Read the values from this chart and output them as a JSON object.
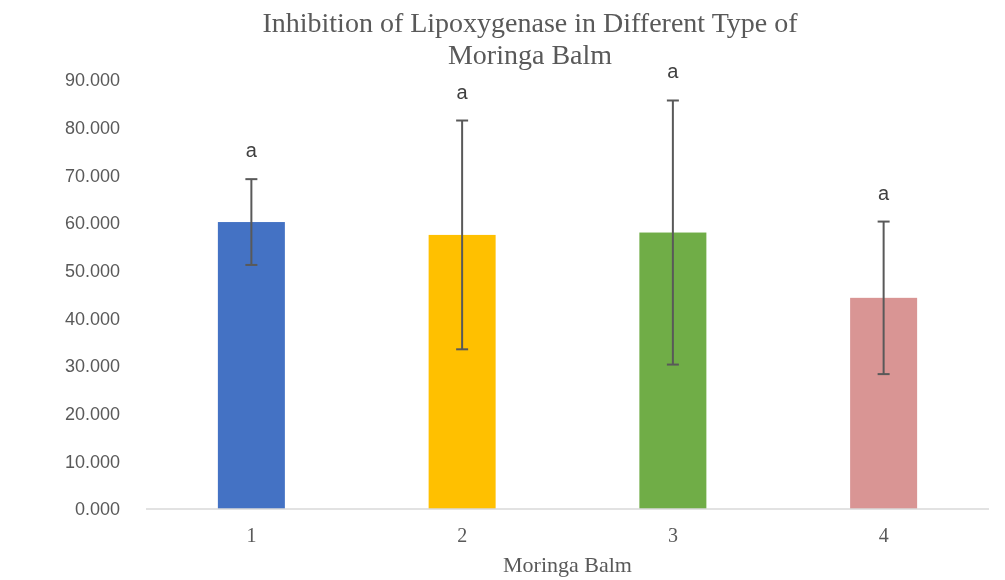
{
  "chart_data": {
    "type": "bar",
    "title": "Inhibition of Lipoxygenase in Different Type of Moringa Balm",
    "xlabel": "Moringa Balm",
    "categories": [
      "1",
      "2",
      "3",
      "4"
    ],
    "values": [
      60.2,
      57.5,
      58.0,
      44.3
    ],
    "colors": [
      "#4472c4",
      "#ffc000",
      "#70ad47",
      "#d99594"
    ],
    "errors": [
      9.0,
      24.0,
      27.7,
      16.0
    ],
    "annotations": [
      {
        "text": "a",
        "x": "1",
        "y": 69.2
      },
      {
        "text": "a",
        "x": "2",
        "y": 81.5
      },
      {
        "text": "a",
        "x": "3",
        "y": 85.7
      },
      {
        "text": "a",
        "x": "4",
        "y": 60.3
      }
    ],
    "ylim": [
      0,
      90
    ],
    "yticks": [
      {
        "value": 0,
        "label": "0.000"
      },
      {
        "value": 10,
        "label": "10.000"
      },
      {
        "value": 20,
        "label": "20.000"
      },
      {
        "value": 30,
        "label": "30.000"
      },
      {
        "value": 40,
        "label": "40.000"
      },
      {
        "value": 50,
        "label": "50.000"
      },
      {
        "value": 60,
        "label": "60.000"
      },
      {
        "value": 70,
        "label": "70.000"
      },
      {
        "value": 80,
        "label": "80.000"
      },
      {
        "value": 90,
        "label": "90.000"
      }
    ],
    "grid": false
  }
}
